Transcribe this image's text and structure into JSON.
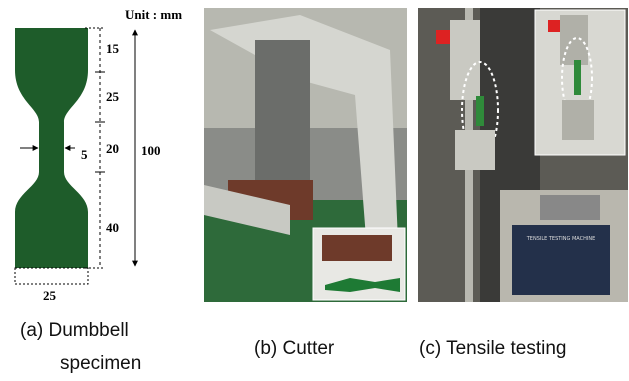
{
  "panel_a": {
    "unit": "Unit : mm",
    "dim_top": 15,
    "dim_taper": 25,
    "dim_gauge": 20,
    "dim_neck_width": 5,
    "dim_total": 100,
    "dim_bottom": 40,
    "dim_width": 25,
    "caption": [
      "(a) Dumbbell",
      "specimen"
    ]
  },
  "panel_b": {
    "caption": "(b) Cutter"
  },
  "panel_c": {
    "machine_label": "TENSILE TESTING MACHINE",
    "caption": "(c) Tensile testing"
  }
}
